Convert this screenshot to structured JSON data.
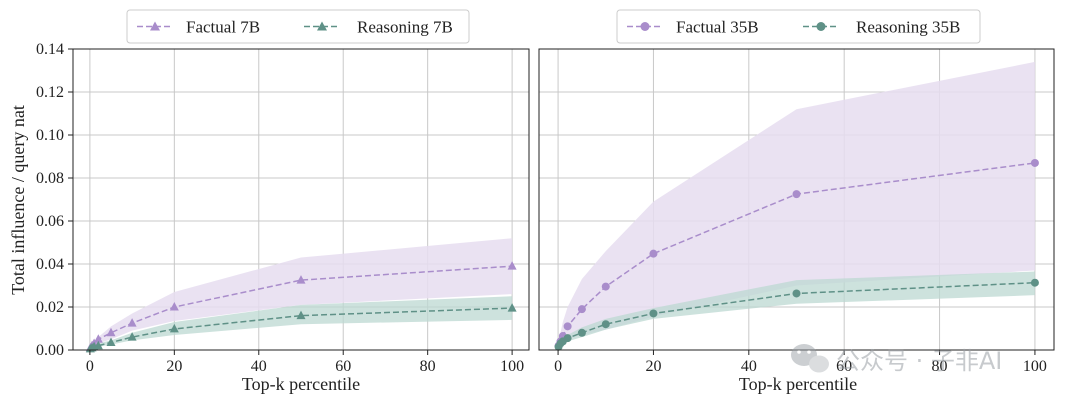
{
  "colors": {
    "factual": "#a98dcb",
    "reasoning": "#5f9187",
    "factual_band": "#e6ddf0",
    "reasoning_band": "#bcd8d1"
  },
  "watermark": {
    "text": "公众号 · 子非AI",
    "icon": "wechat-icon"
  },
  "chart_data": [
    {
      "type": "line",
      "ylabel": "Total influence / query nat",
      "xlabel": "Top-k percentile",
      "xlim": [
        -4,
        104
      ],
      "ylim": [
        0,
        0.14
      ],
      "xticks": [
        "0",
        "20",
        "40",
        "60",
        "80",
        "100"
      ],
      "xtick_values": [
        0,
        20,
        40,
        60,
        80,
        100
      ],
      "yticks": [
        "0.00",
        "0.02",
        "0.04",
        "0.06",
        "0.08",
        "0.10",
        "0.12",
        "0.14"
      ],
      "ytick_values": [
        0,
        0.02,
        0.04,
        0.06,
        0.08,
        0.1,
        0.12,
        0.14
      ],
      "grid": true,
      "legend_position": "top",
      "x": [
        0.1,
        0.5,
        1,
        2,
        5,
        10,
        20,
        50,
        100
      ],
      "series": [
        {
          "name": "Factual 7B",
          "marker": "triangle",
          "values": [
            0.001,
            0.002,
            0.003,
            0.005,
            0.008,
            0.0125,
            0.02,
            0.0325,
            0.039
          ],
          "lower": [
            0.0005,
            0.001,
            0.002,
            0.003,
            0.005,
            0.009,
            0.0135,
            0.021,
            0.026
          ],
          "upper": [
            0.0015,
            0.003,
            0.004,
            0.006,
            0.011,
            0.017,
            0.027,
            0.043,
            0.052
          ]
        },
        {
          "name": "Reasoning 7B",
          "marker": "triangle",
          "values": [
            0.0005,
            0.001,
            0.0015,
            0.002,
            0.0035,
            0.006,
            0.0098,
            0.016,
            0.0195
          ],
          "lower": [
            0.0003,
            0.0006,
            0.001,
            0.0015,
            0.0025,
            0.0045,
            0.007,
            0.012,
            0.014
          ],
          "upper": [
            0.0007,
            0.0015,
            0.002,
            0.003,
            0.0045,
            0.008,
            0.013,
            0.021,
            0.025
          ]
        }
      ]
    },
    {
      "type": "line",
      "ylabel": "",
      "xlabel": "Top-k percentile",
      "xlim": [
        -4,
        104
      ],
      "ylim": [
        0,
        0.14
      ],
      "xticks": [
        "0",
        "20",
        "40",
        "60",
        "80",
        "100"
      ],
      "xtick_values": [
        0,
        20,
        40,
        60,
        80,
        100
      ],
      "yticks": [],
      "ytick_values": [
        0,
        0.02,
        0.04,
        0.06,
        0.08,
        0.1,
        0.12,
        0.14
      ],
      "grid": true,
      "legend_position": "top",
      "x": [
        0.1,
        0.5,
        1,
        2,
        5,
        10,
        20,
        50,
        100
      ],
      "series": [
        {
          "name": "Factual 35B",
          "marker": "circle",
          "values": [
            0.002,
            0.004,
            0.0065,
            0.011,
            0.019,
            0.0295,
            0.0448,
            0.0725,
            0.087
          ],
          "lower": [
            0.001,
            0.002,
            0.004,
            0.005,
            0.007,
            0.0095,
            0.0155,
            0.03,
            0.037
          ],
          "upper": [
            0.004,
            0.008,
            0.013,
            0.02,
            0.033,
            0.046,
            0.069,
            0.112,
            0.134
          ]
        },
        {
          "name": "Reasoning 35B",
          "marker": "circle",
          "values": [
            0.0015,
            0.003,
            0.004,
            0.0055,
            0.008,
            0.012,
            0.017,
            0.0263,
            0.0313
          ],
          "lower": [
            0.001,
            0.002,
            0.003,
            0.004,
            0.006,
            0.0095,
            0.0145,
            0.0215,
            0.0255
          ],
          "upper": [
            0.002,
            0.004,
            0.005,
            0.007,
            0.0105,
            0.0145,
            0.0195,
            0.0325,
            0.0365
          ]
        }
      ]
    }
  ]
}
